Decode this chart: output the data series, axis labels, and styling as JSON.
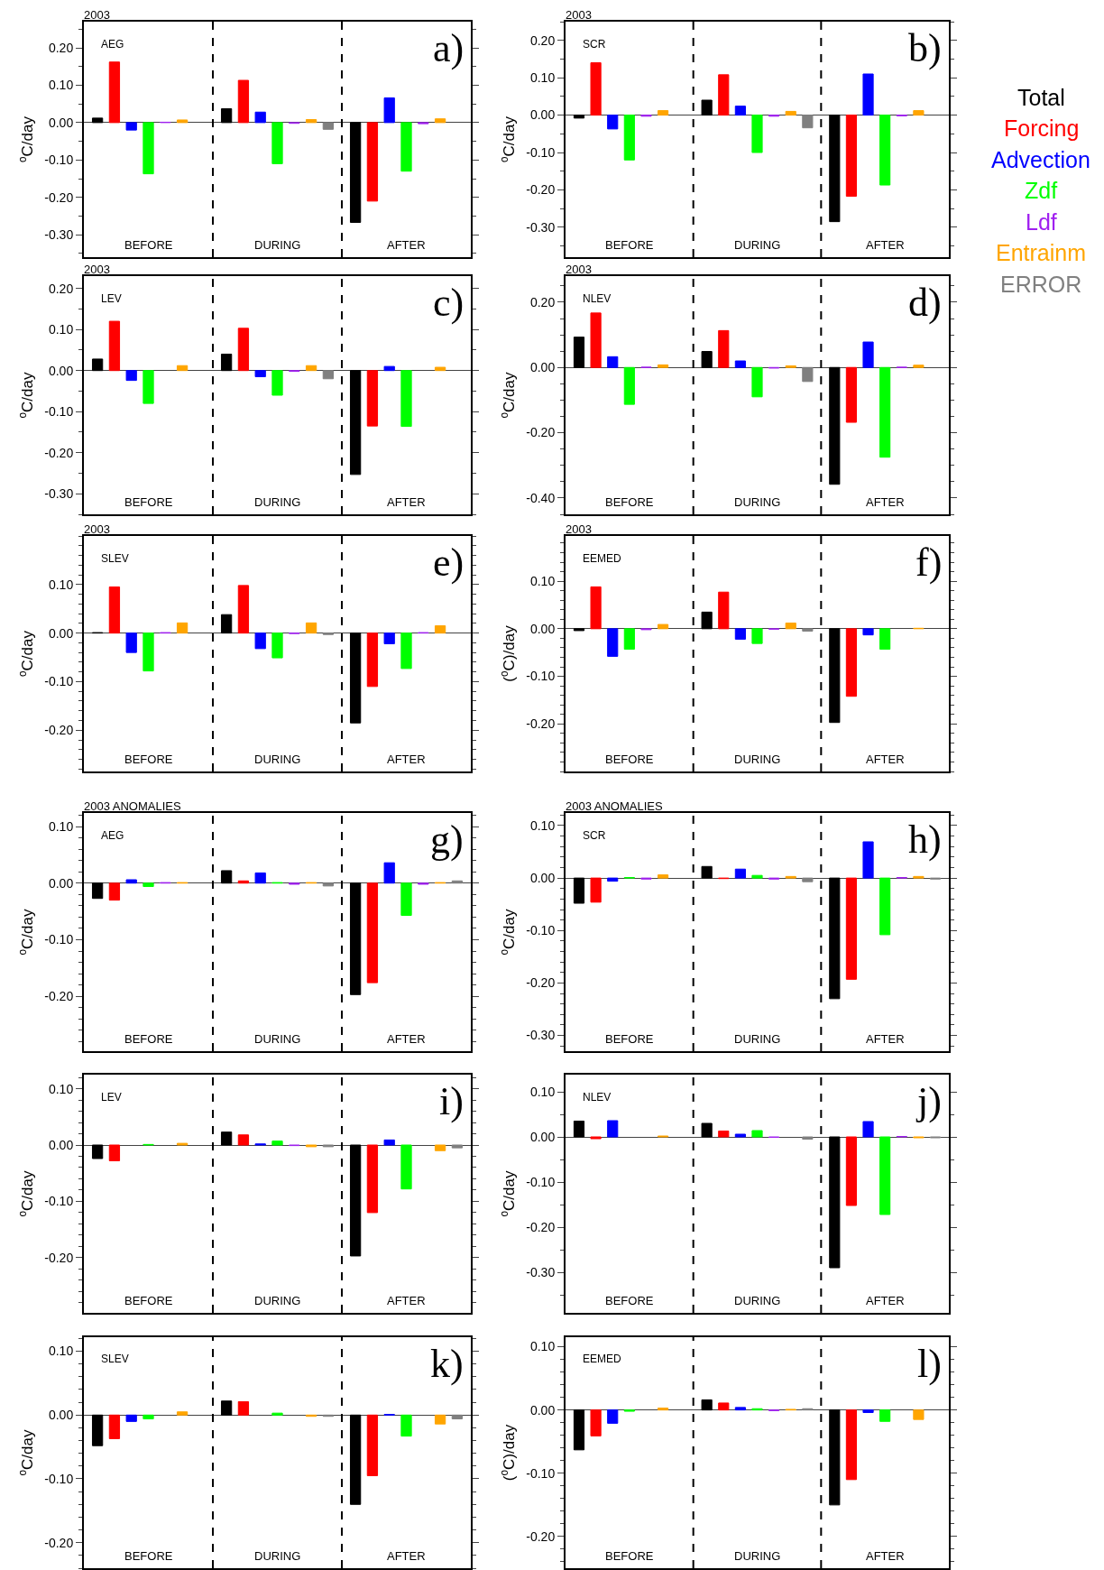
{
  "chart_data": [
    {
      "type": "bar",
      "title": "2003",
      "subtitle": "AEG",
      "ylabel": "$^{o}$C/day",
      "annotations": [
        "a)"
      ],
      "categories": [
        "BEFORE",
        "DURING",
        "AFTER"
      ],
      "grid": "x",
      "ylim": [
        -0.36,
        0.27
      ],
      "yticks": [
        {
          "value": 0.2,
          "label": "0.20"
        },
        {
          "value": 0.1,
          "label": "0.10"
        },
        {
          "value": 0,
          "label": "0.00"
        },
        {
          "value": -0.1,
          "label": "-0.10"
        },
        {
          "value": -0.2,
          "label": "-0.20"
        },
        {
          "value": -0.3,
          "label": "-0.30"
        }
      ],
      "series": [
        {
          "color": "#000000",
          "values": [
            0.012,
            0.037,
            -0.267
          ]
        },
        {
          "color": "#ff0000",
          "values": [
            0.162,
            0.113,
            -0.21
          ]
        },
        {
          "color": "#0000ff",
          "values": [
            -0.02,
            0.028,
            0.066
          ]
        },
        {
          "color": "#00ff00",
          "values": [
            -0.137,
            -0.11,
            -0.13
          ]
        },
        {
          "color": "#a020f0",
          "values": [
            0.001,
            -0.002,
            -0.003
          ]
        },
        {
          "color": "#ffa500",
          "values": [
            0.007,
            0.008,
            0.01
          ]
        },
        {
          "color": "#808080",
          "values": [
            null,
            -0.018,
            null
          ]
        }
      ]
    },
    {
      "type": "bar",
      "title": "2003",
      "subtitle": "SCR",
      "ylabel": "$^{o}$C/day",
      "annotations": [
        "b)"
      ],
      "categories": [
        "BEFORE",
        "DURING",
        "AFTER"
      ],
      "grid": "x",
      "legend": "right",
      "ylim": [
        -0.38,
        0.25
      ],
      "yticks": [
        {
          "value": 0.2,
          "label": "0.20"
        },
        {
          "value": 0.1,
          "label": "0.10"
        },
        {
          "value": 0,
          "label": "0.00"
        },
        {
          "value": -0.1,
          "label": "-0.10"
        },
        {
          "value": -0.2,
          "label": "-0.20"
        },
        {
          "value": -0.3,
          "label": "-0.30"
        }
      ],
      "series": [
        {
          "name": "Total",
          "color": "#000000",
          "values": [
            -0.008,
            0.04,
            -0.285
          ]
        },
        {
          "name": "Forcing",
          "color": "#ff0000",
          "values": [
            0.14,
            0.108,
            -0.217
          ]
        },
        {
          "name": "Advection",
          "color": "#0000ff",
          "values": [
            -0.037,
            0.024,
            0.11
          ]
        },
        {
          "name": "Zdf",
          "color": "#00ff00",
          "values": [
            -0.12,
            -0.1,
            -0.187
          ]
        },
        {
          "name": "Ldf",
          "color": "#a020f0",
          "values": [
            -0.003,
            -0.003,
            -0.002
          ]
        },
        {
          "name": "Entrainm",
          "color": "#ffa500",
          "values": [
            0.012,
            0.01,
            0.012
          ]
        },
        {
          "name": "ERROR",
          "color": "#808080",
          "values": [
            null,
            -0.034,
            null
          ]
        }
      ]
    },
    {
      "type": "bar",
      "title": "2003",
      "subtitle": "LEV",
      "ylabel": "$^{o}$C/day",
      "annotations": [
        "c)"
      ],
      "categories": [
        "BEFORE",
        "DURING",
        "AFTER"
      ],
      "grid": "x",
      "ylim": [
        -0.35,
        0.23
      ],
      "yticks": [
        {
          "value": 0.2,
          "label": "0.20"
        },
        {
          "value": 0.1,
          "label": "0.10"
        },
        {
          "value": 0,
          "label": "0.00"
        },
        {
          "value": -0.1,
          "label": "-0.10"
        },
        {
          "value": -0.2,
          "label": "-0.20"
        },
        {
          "value": -0.3,
          "label": "-0.30"
        }
      ],
      "series": [
        {
          "color": "#000000",
          "values": [
            0.028,
            0.04,
            -0.253
          ]
        },
        {
          "color": "#ff0000",
          "values": [
            0.12,
            0.103,
            -0.135
          ]
        },
        {
          "color": "#0000ff",
          "values": [
            -0.024,
            -0.015,
            0.01
          ]
        },
        {
          "color": "#00ff00",
          "values": [
            -0.08,
            -0.06,
            -0.136
          ]
        },
        {
          "color": "#a020f0",
          "values": [
            null,
            -0.002,
            null
          ]
        },
        {
          "color": "#ffa500",
          "values": [
            0.012,
            0.012,
            0.008
          ]
        },
        {
          "color": "#808080",
          "values": [
            null,
            -0.02,
            null
          ]
        }
      ]
    },
    {
      "type": "bar",
      "title": "2003",
      "subtitle": "NLEV",
      "ylabel": "$^{o}$C/day",
      "annotations": [
        "d)"
      ],
      "categories": [
        "BEFORE",
        "DURING",
        "AFTER"
      ],
      "grid": "x",
      "ylim": [
        -0.45,
        0.28
      ],
      "yticks": [
        {
          "value": 0.2,
          "label": "0.20"
        },
        {
          "value": 0,
          "label": "0.00"
        },
        {
          "value": -0.2,
          "label": "-0.20"
        },
        {
          "value": -0.4,
          "label": "-0.40"
        }
      ],
      "series": [
        {
          "color": "#000000",
          "values": [
            0.093,
            0.049,
            -0.358
          ]
        },
        {
          "color": "#ff0000",
          "values": [
            0.167,
            0.113,
            -0.168
          ]
        },
        {
          "color": "#0000ff",
          "values": [
            0.033,
            0.02,
            0.078
          ]
        },
        {
          "color": "#00ff00",
          "values": [
            -0.113,
            -0.09,
            -0.275
          ]
        },
        {
          "color": "#a020f0",
          "values": [
            0.001,
            -0.002,
            0.001
          ]
        },
        {
          "color": "#ffa500",
          "values": [
            0.008,
            0.005,
            0.007
          ]
        },
        {
          "color": "#808080",
          "values": [
            null,
            -0.043,
            null
          ]
        }
      ]
    },
    {
      "type": "bar",
      "title": "2003",
      "subtitle": "SLEV",
      "ylabel": "$^{o}$C/day",
      "annotations": [
        "e)"
      ],
      "categories": [
        "BEFORE",
        "DURING",
        "AFTER"
      ],
      "grid": "x",
      "ylim": [
        -0.285,
        0.2
      ],
      "yticks": [
        {
          "value": 0.1,
          "label": "0.10"
        },
        {
          "value": 0,
          "label": "0.00"
        },
        {
          "value": -0.1,
          "label": "-0.10"
        },
        {
          "value": -0.2,
          "label": "-0.20"
        }
      ],
      "series": [
        {
          "color": "#000000",
          "values": [
            0.001,
            0.038,
            -0.185
          ]
        },
        {
          "color": "#ff0000",
          "values": [
            0.095,
            0.098,
            -0.11
          ]
        },
        {
          "color": "#0000ff",
          "values": [
            -0.04,
            -0.032,
            -0.022
          ]
        },
        {
          "color": "#00ff00",
          "values": [
            -0.078,
            -0.051,
            -0.073
          ]
        },
        {
          "color": "#a020f0",
          "values": [
            0.001,
            -0.001,
            0.001
          ]
        },
        {
          "color": "#ffa500",
          "values": [
            0.021,
            0.021,
            0.015
          ]
        },
        {
          "color": "#808080",
          "values": [
            null,
            -0.003,
            null
          ]
        }
      ]
    },
    {
      "type": "bar",
      "title": "2003",
      "subtitle": "EEMED",
      "ylabel": "($^{o}$C)/day",
      "annotations": [
        "f)"
      ],
      "categories": [
        "BEFORE",
        "DURING",
        "AFTER"
      ],
      "grid": "x",
      "ylim": [
        -0.3,
        0.195
      ],
      "yticks": [
        {
          "value": 0.1,
          "label": "0.10"
        },
        {
          "value": 0,
          "label": "0.00"
        },
        {
          "value": -0.1,
          "label": "-0.10"
        },
        {
          "value": -0.2,
          "label": "-0.20"
        }
      ],
      "series": [
        {
          "color": "#000000",
          "values": [
            -0.004,
            0.035,
            -0.197
          ]
        },
        {
          "color": "#ff0000",
          "values": [
            0.088,
            0.077,
            -0.142
          ]
        },
        {
          "color": "#0000ff",
          "values": [
            -0.058,
            -0.022,
            -0.013
          ]
        },
        {
          "color": "#00ff00",
          "values": [
            -0.043,
            -0.031,
            -0.043
          ]
        },
        {
          "color": "#a020f0",
          "values": [
            -0.002,
            -0.001,
            null
          ]
        },
        {
          "color": "#ffa500",
          "values": [
            0.009,
            0.012,
            0.001
          ]
        },
        {
          "color": "#808080",
          "values": [
            null,
            -0.005,
            null
          ]
        }
      ]
    },
    {
      "type": "bar",
      "title": "2003 ANOMALIES",
      "subtitle": "AEG",
      "ylabel": "$^{o}$C/day",
      "annotations": [
        "g)"
      ],
      "categories": [
        "BEFORE",
        "DURING",
        "AFTER"
      ],
      "grid": "x",
      "ylim": [
        -0.297,
        0.124
      ],
      "yticks": [
        {
          "value": 0.1,
          "label": "0.10"
        },
        {
          "value": 0,
          "label": "0.00"
        },
        {
          "value": -0.1,
          "label": "-0.10"
        },
        {
          "value": -0.2,
          "label": "-0.20"
        }
      ],
      "series": [
        {
          "color": "#000000",
          "values": [
            -0.027,
            0.022,
            -0.197
          ]
        },
        {
          "color": "#ff0000",
          "values": [
            -0.03,
            0.004,
            -0.176
          ]
        },
        {
          "color": "#0000ff",
          "values": [
            0.006,
            0.018,
            0.036
          ]
        },
        {
          "color": "#00ff00",
          "values": [
            -0.006,
            0.001,
            -0.057
          ]
        },
        {
          "color": "#a020f0",
          "values": [
            0.001,
            -0.002,
            -0.002
          ]
        },
        {
          "color": "#ffa500",
          "values": [
            0.001,
            0.001,
            0.001
          ]
        },
        {
          "color": "#808080",
          "values": [
            null,
            -0.005,
            0.004
          ]
        }
      ]
    },
    {
      "type": "bar",
      "title": "2003 ANOMALIES",
      "subtitle": "SCR",
      "ylabel": "$^{o}$C/day",
      "annotations": [
        "h)"
      ],
      "categories": [
        "BEFORE",
        "DURING",
        "AFTER"
      ],
      "grid": "x",
      "ylim": [
        -0.33,
        0.124
      ],
      "yticks": [
        {
          "value": 0.1,
          "label": "0.10"
        },
        {
          "value": 0,
          "label": "0.00"
        },
        {
          "value": -0.1,
          "label": "-0.10"
        },
        {
          "value": -0.2,
          "label": "-0.20"
        },
        {
          "value": -0.3,
          "label": "-0.30"
        }
      ],
      "series": [
        {
          "color": "#000000",
          "values": [
            -0.048,
            0.022,
            -0.23
          ]
        },
        {
          "color": "#ff0000",
          "values": [
            -0.046,
            -0.001,
            -0.193
          ]
        },
        {
          "color": "#0000ff",
          "values": [
            -0.006,
            0.017,
            0.069
          ]
        },
        {
          "color": "#00ff00",
          "values": [
            0.001,
            0.005,
            -0.108
          ]
        },
        {
          "color": "#a020f0",
          "values": [
            -0.002,
            -0.002,
            0.001
          ]
        },
        {
          "color": "#ffa500",
          "values": [
            0.006,
            0.003,
            0.003
          ]
        },
        {
          "color": "#808080",
          "values": [
            null,
            -0.007,
            -0.002
          ]
        }
      ]
    },
    {
      "type": "bar",
      "subtitle": "LEV",
      "ylabel": "$^{o}$C/day",
      "annotations": [
        "i)"
      ],
      "categories": [
        "BEFORE",
        "DURING",
        "AFTER"
      ],
      "grid": "x",
      "ylim": [
        -0.298,
        0.125
      ],
      "yticks": [
        {
          "value": 0.1,
          "label": "0.10"
        },
        {
          "value": 0,
          "label": "0.00"
        },
        {
          "value": -0.1,
          "label": "-0.10"
        },
        {
          "value": -0.2,
          "label": "-0.20"
        }
      ],
      "series": [
        {
          "color": "#000000",
          "values": [
            -0.024,
            0.023,
            -0.197
          ]
        },
        {
          "color": "#ff0000",
          "values": [
            -0.028,
            0.018,
            -0.12
          ]
        },
        {
          "color": "#0000ff",
          "values": [
            null,
            0.002,
            0.009
          ]
        },
        {
          "color": "#00ff00",
          "values": [
            0.001,
            0.007,
            -0.078
          ]
        },
        {
          "color": "#a020f0",
          "values": [
            null,
            -0.001,
            null
          ]
        },
        {
          "color": "#ffa500",
          "values": [
            0.003,
            -0.003,
            -0.01
          ]
        },
        {
          "color": "#808080",
          "values": [
            null,
            -0.003,
            -0.005
          ]
        }
      ]
    },
    {
      "type": "bar",
      "subtitle": "NLEV",
      "ylabel": "$^{o}$C/day",
      "annotations": [
        "j)"
      ],
      "categories": [
        "BEFORE",
        "DURING",
        "AFTER"
      ],
      "grid": "x",
      "ylim": [
        -0.39,
        0.138
      ],
      "yticks": [
        {
          "value": 0.1,
          "label": "0.10"
        },
        {
          "value": 0,
          "label": "0.00"
        },
        {
          "value": -0.1,
          "label": "-0.10"
        },
        {
          "value": -0.2,
          "label": "-0.20"
        },
        {
          "value": -0.3,
          "label": "-0.30"
        }
      ],
      "series": [
        {
          "color": "#000000",
          "values": [
            0.035,
            0.03,
            -0.29
          ]
        },
        {
          "color": "#ff0000",
          "values": [
            -0.004,
            0.013,
            -0.152
          ]
        },
        {
          "color": "#0000ff",
          "values": [
            0.036,
            0.006,
            0.034
          ]
        },
        {
          "color": "#00ff00",
          "values": [
            null,
            0.014,
            -0.172
          ]
        },
        {
          "color": "#a020f0",
          "values": [
            null,
            -0.001,
            0.001
          ]
        },
        {
          "color": "#ffa500",
          "values": [
            0.002,
            null,
            -0.002
          ]
        },
        {
          "color": "#808080",
          "values": [
            null,
            -0.005,
            -0.002
          ]
        }
      ]
    },
    {
      "type": "bar",
      "subtitle": "SLEV",
      "ylabel": "$^{o}$C/day",
      "annotations": [
        "k)"
      ],
      "categories": [
        "BEFORE",
        "DURING",
        "AFTER"
      ],
      "grid": "x",
      "ylim": [
        -0.24,
        0.122
      ],
      "yticks": [
        {
          "value": 0.1,
          "label": "0.10"
        },
        {
          "value": 0,
          "label": "0.00"
        },
        {
          "value": -0.1,
          "label": "-0.10"
        },
        {
          "value": -0.2,
          "label": "-0.20"
        }
      ],
      "series": [
        {
          "color": "#000000",
          "values": [
            -0.048,
            0.022,
            -0.14
          ]
        },
        {
          "color": "#ff0000",
          "values": [
            -0.037,
            0.021,
            -0.095
          ]
        },
        {
          "color": "#0000ff",
          "values": [
            -0.01,
            null,
            0.001
          ]
        },
        {
          "color": "#00ff00",
          "values": [
            -0.006,
            0.003,
            -0.033
          ]
        },
        {
          "color": "#a020f0",
          "values": [
            null,
            null,
            null
          ]
        },
        {
          "color": "#ffa500",
          "values": [
            0.005,
            -0.002,
            -0.014
          ]
        },
        {
          "color": "#808080",
          "values": [
            null,
            -0.002,
            -0.006
          ]
        }
      ]
    },
    {
      "type": "bar",
      "subtitle": "EEMED",
      "ylabel": "($^{o}$C)/day",
      "annotations": [
        "l)"
      ],
      "categories": [
        "BEFORE",
        "DURING",
        "AFTER"
      ],
      "grid": "x",
      "ylim": [
        -0.25,
        0.115
      ],
      "yticks": [
        {
          "value": 0.1,
          "label": "0.10"
        },
        {
          "value": 0,
          "label": "0.00"
        },
        {
          "value": -0.1,
          "label": "-0.10"
        },
        {
          "value": -0.2,
          "label": "-0.20"
        }
      ],
      "series": [
        {
          "color": "#000000",
          "values": [
            -0.063,
            0.016,
            -0.15
          ]
        },
        {
          "color": "#ff0000",
          "values": [
            -0.041,
            0.011,
            -0.11
          ]
        },
        {
          "color": "#0000ff",
          "values": [
            -0.021,
            0.004,
            -0.004
          ]
        },
        {
          "color": "#00ff00",
          "values": [
            -0.002,
            0.002,
            -0.018
          ]
        },
        {
          "color": "#a020f0",
          "values": [
            null,
            -0.001,
            null
          ]
        },
        {
          "color": "#ffa500",
          "values": [
            0.003,
            0.001,
            -0.015
          ]
        },
        {
          "color": "#808080",
          "values": [
            null,
            0.002,
            null
          ]
        }
      ]
    }
  ]
}
